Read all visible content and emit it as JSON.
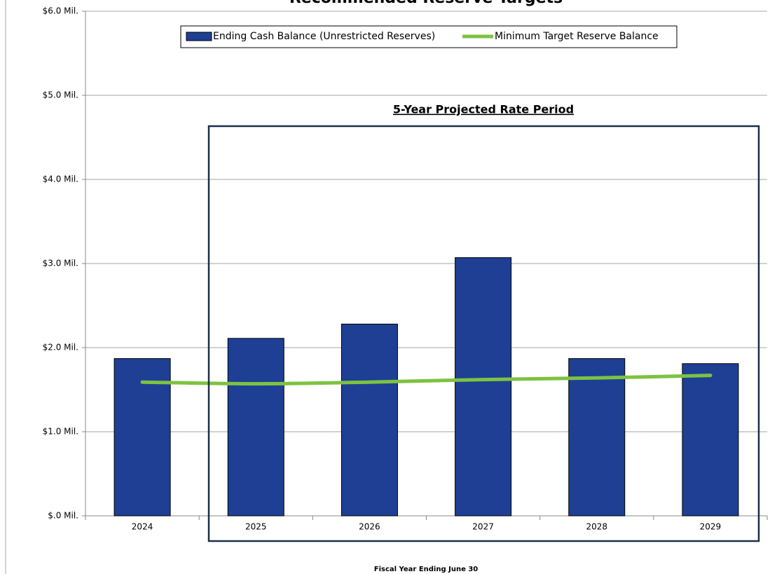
{
  "chart_data": {
    "type": "bar",
    "title": "Recommended Reserve Targets",
    "x_label": "Fiscal Year Ending June 30",
    "annotation": "5-Year Projected Rate Period",
    "categories": [
      "2024",
      "2025",
      "2026",
      "2027",
      "2028",
      "2029"
    ],
    "series": [
      {
        "name": "Ending Cash Balance (Unrestricted Reserves)",
        "type": "bar",
        "color": "#1f3f94",
        "values": [
          1.87,
          2.11,
          2.28,
          3.07,
          1.87,
          1.81
        ]
      },
      {
        "name": "Minimum Target Reserve Balance",
        "type": "line",
        "color": "#7dc242",
        "values": [
          1.59,
          1.57,
          1.59,
          1.62,
          1.64,
          1.67
        ]
      }
    ],
    "ylim": [
      0,
      6
    ],
    "yticks": [
      {
        "value": 0,
        "label": "$.0 Mil."
      },
      {
        "value": 1,
        "label": "$1.0 Mil."
      },
      {
        "value": 2,
        "label": "$2.0 Mil."
      },
      {
        "value": 3,
        "label": "$3.0 Mil."
      },
      {
        "value": 4,
        "label": "$4.0 Mil."
      },
      {
        "value": 5,
        "label": "$5.0 Mil."
      },
      {
        "value": 6,
        "label": "$6.0 Mil."
      }
    ],
    "grid": true,
    "legend": "top"
  }
}
